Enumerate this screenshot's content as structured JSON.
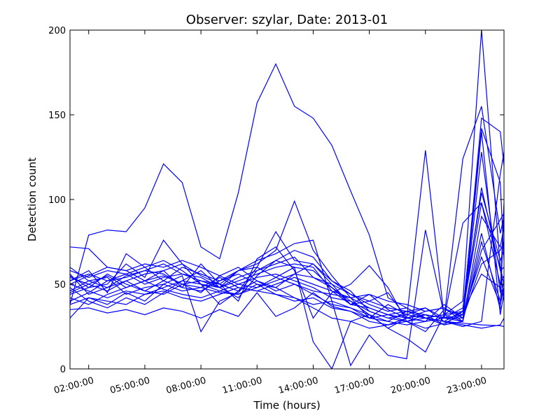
{
  "chart_data": {
    "type": "line",
    "title": "Observer: szylar, Date: 2013-01",
    "xlabel": "Time (hours)",
    "ylabel": "Detection count",
    "xlim": [
      1,
      24.2
    ],
    "ylim": [
      0,
      200
    ],
    "x_ticks": [
      {
        "value": 2,
        "label": "02:00:00"
      },
      {
        "value": 5,
        "label": "05:00:00"
      },
      {
        "value": 8,
        "label": "08:00:00"
      },
      {
        "value": 11,
        "label": "11:00:00"
      },
      {
        "value": 14,
        "label": "14:00:00"
      },
      {
        "value": 17,
        "label": "17:00:00"
      },
      {
        "value": 20,
        "label": "20:00:00"
      },
      {
        "value": 23,
        "label": "23:00:00"
      }
    ],
    "y_ticks": [
      0,
      50,
      100,
      150,
      200
    ],
    "grid": false,
    "line_color": "#0000ff",
    "x": [
      1,
      2,
      3,
      4,
      5,
      6,
      7,
      8,
      9,
      10,
      11,
      12,
      13,
      14,
      15,
      16,
      17,
      18,
      19,
      20,
      21,
      22,
      23,
      24,
      24.2
    ],
    "series": [
      {
        "values": [
          72,
          71,
          60,
          58,
          52,
          55,
          50,
          48,
          45,
          44,
          50,
          48,
          42,
          36,
          30,
          28,
          24,
          26,
          28,
          30,
          28,
          27,
          26,
          25.5,
          25
        ]
      },
      {
        "values": [
          38,
          79,
          82,
          81,
          95,
          121,
          110,
          72,
          65,
          104,
          157,
          180,
          155,
          148,
          132,
          105,
          79,
          42,
          36,
          30,
          28,
          25,
          28,
          115,
          128
        ]
      },
      {
        "values": [
          45,
          50,
          55,
          48,
          52,
          58,
          62,
          55,
          50,
          58,
          64,
          68,
          74,
          76,
          40,
          2,
          20,
          8,
          6,
          82,
          32,
          40,
          200,
          60,
          40
        ]
      },
      {
        "values": [
          50,
          55,
          60,
          58,
          62,
          60,
          64,
          60,
          55,
          50,
          48,
          54,
          60,
          58,
          48,
          38,
          40,
          45,
          30,
          129,
          30,
          124,
          155,
          80,
          90
        ]
      },
      {
        "values": [
          40,
          45,
          52,
          56,
          60,
          64,
          58,
          50,
          48,
          58,
          62,
          70,
          99,
          70,
          55,
          42,
          30,
          28,
          26,
          28,
          30,
          86,
          98,
          60,
          50
        ]
      },
      {
        "values": [
          55,
          48,
          50,
          62,
          54,
          76,
          62,
          50,
          38,
          46,
          60,
          81,
          64,
          62,
          52,
          46,
          34,
          30,
          28,
          24,
          27,
          32,
          148,
          140,
          120
        ]
      },
      {
        "values": [
          30,
          42,
          38,
          45,
          40,
          50,
          55,
          22,
          40,
          45,
          58,
          62,
          66,
          54,
          48,
          40,
          32,
          24,
          30,
          32,
          26,
          28,
          140,
          32,
          45
        ]
      },
      {
        "values": [
          52,
          58,
          45,
          68,
          60,
          52,
          48,
          62,
          50,
          40,
          65,
          72,
          58,
          30,
          45,
          50,
          61,
          48,
          28,
          22,
          35,
          32,
          107,
          58,
          60
        ]
      },
      {
        "values": [
          48,
          40,
          36,
          42,
          38,
          45,
          52,
          58,
          48,
          42,
          55,
          64,
          60,
          16,
          0,
          28,
          32,
          24,
          18,
          10,
          32,
          28,
          128,
          45,
          98
        ]
      },
      {
        "values": [
          60,
          52,
          48,
          55,
          58,
          56,
          50,
          45,
          55,
          60,
          52,
          48,
          56,
          62,
          50,
          38,
          44,
          35,
          30,
          28,
          38,
          30,
          80,
          35,
          96
        ]
      },
      {
        "values": [
          44,
          48,
          56,
          50,
          46,
          52,
          60,
          56,
          52,
          56,
          50,
          44,
          42,
          38,
          40,
          36,
          30,
          38,
          32,
          30,
          32,
          34,
          98,
          50,
          55
        ]
      },
      {
        "values": [
          54,
          50,
          46,
          52,
          56,
          58,
          48,
          46,
          52,
          58,
          60,
          54,
          50,
          46,
          44,
          42,
          36,
          32,
          28,
          32,
          30,
          30,
          62,
          70,
          75
        ]
      },
      {
        "values": [
          42,
          38,
          44,
          48,
          52,
          47,
          44,
          42,
          46,
          50,
          54,
          56,
          52,
          48,
          42,
          40,
          34,
          30,
          32,
          36,
          30,
          28,
          75,
          40,
          52
        ]
      },
      {
        "values": [
          35,
          36,
          33,
          35,
          32,
          36,
          34,
          30,
          35,
          31,
          45,
          31,
          36,
          45,
          37,
          34,
          30,
          32,
          34,
          30,
          28,
          26,
          24,
          26,
          30
        ]
      },
      {
        "values": [
          58,
          54,
          58,
          56,
          50,
          54,
          56,
          54,
          48,
          52,
          56,
          60,
          62,
          60,
          46,
          42,
          44,
          40,
          38,
          34,
          36,
          30,
          70,
          88,
          92
        ]
      },
      {
        "values": [
          50,
          46,
          42,
          46,
          44,
          48,
          52,
          50,
          46,
          44,
          48,
          52,
          56,
          54,
          50,
          44,
          38,
          34,
          36,
          30,
          26,
          34,
          142,
          110,
          64
        ]
      },
      {
        "values": [
          46,
          52,
          54,
          44,
          48,
          50,
          46,
          48,
          54,
          48,
          46,
          50,
          54,
          50,
          46,
          38,
          36,
          32,
          30,
          34,
          36,
          28,
          90,
          72,
          84
        ]
      },
      {
        "values": [
          56,
          44,
          48,
          52,
          46,
          44,
          50,
          52,
          50,
          46,
          52,
          46,
          50,
          44,
          38,
          36,
          32,
          28,
          34,
          36,
          28,
          34,
          56,
          48,
          42
        ]
      },
      {
        "values": [
          38,
          42,
          40,
          38,
          44,
          46,
          42,
          40,
          44,
          48,
          46,
          44,
          40,
          42,
          36,
          34,
          28,
          26,
          30,
          28,
          30,
          32,
          66,
          38,
          48
        ]
      },
      {
        "values": [
          52,
          56,
          52,
          54,
          58,
          62,
          56,
          52,
          48,
          54,
          58,
          64,
          70,
          66,
          52,
          44,
          40,
          36,
          34,
          32,
          30,
          36,
          104,
          64,
          70
        ]
      }
    ]
  }
}
